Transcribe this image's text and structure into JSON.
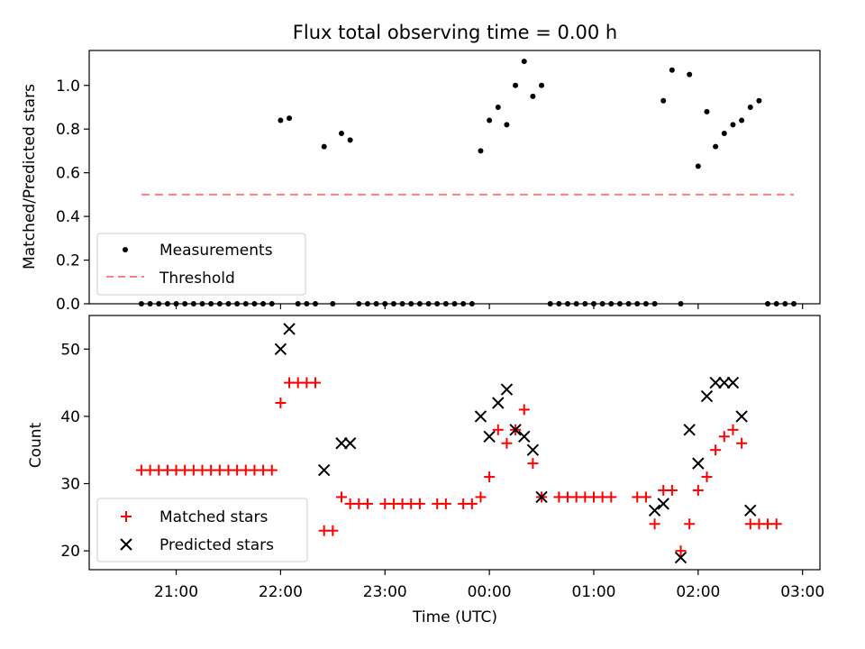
{
  "chart_data": [
    {
      "type": "scatter",
      "title": "Flux total observing time = 0.00 h",
      "xlabel": "",
      "ylabel": "Matched/Predicted stars",
      "ylim": [
        0,
        1.16
      ],
      "yticks": [
        "0.0",
        "0.2",
        "0.4",
        "0.6",
        "0.8",
        "1.0"
      ],
      "grid": false,
      "legend_position": "lower-left",
      "series": [
        {
          "name": "Measurements",
          "kind": "points",
          "color": "#000000",
          "points": [
            [
              "20:40",
              0
            ],
            [
              "20:45",
              0
            ],
            [
              "20:50",
              0
            ],
            [
              "20:55",
              0
            ],
            [
              "21:00",
              0
            ],
            [
              "21:05",
              0
            ],
            [
              "21:10",
              0
            ],
            [
              "21:15",
              0
            ],
            [
              "21:20",
              0
            ],
            [
              "21:25",
              0
            ],
            [
              "21:30",
              0
            ],
            [
              "21:35",
              0
            ],
            [
              "21:40",
              0
            ],
            [
              "21:45",
              0
            ],
            [
              "21:50",
              0
            ],
            [
              "21:55",
              0
            ],
            [
              "22:00",
              0.84
            ],
            [
              "22:05",
              0.85
            ],
            [
              "22:10",
              0
            ],
            [
              "22:15",
              0
            ],
            [
              "22:20",
              0
            ],
            [
              "22:25",
              0.72
            ],
            [
              "22:30",
              0
            ],
            [
              "22:35",
              0.78
            ],
            [
              "22:40",
              0.75
            ],
            [
              "22:45",
              0
            ],
            [
              "22:50",
              0
            ],
            [
              "22:55",
              0
            ],
            [
              "23:00",
              0
            ],
            [
              "23:05",
              0
            ],
            [
              "23:10",
              0
            ],
            [
              "23:15",
              0
            ],
            [
              "23:20",
              0
            ],
            [
              "23:25",
              0
            ],
            [
              "23:30",
              0
            ],
            [
              "23:35",
              0
            ],
            [
              "23:40",
              0
            ],
            [
              "23:45",
              0
            ],
            [
              "23:50",
              0
            ],
            [
              "23:55",
              0.7
            ],
            [
              "00:00",
              0.84
            ],
            [
              "00:05",
              0.9
            ],
            [
              "00:10",
              0.82
            ],
            [
              "00:15",
              1.0
            ],
            [
              "00:20",
              1.11
            ],
            [
              "00:25",
              0.95
            ],
            [
              "00:30",
              1.0
            ],
            [
              "00:35",
              0
            ],
            [
              "00:40",
              0
            ],
            [
              "00:45",
              0
            ],
            [
              "00:50",
              0
            ],
            [
              "00:55",
              0
            ],
            [
              "01:00",
              0
            ],
            [
              "01:05",
              0
            ],
            [
              "01:10",
              0
            ],
            [
              "01:15",
              0
            ],
            [
              "01:20",
              0
            ],
            [
              "01:25",
              0
            ],
            [
              "01:30",
              0
            ],
            [
              "01:35",
              0
            ],
            [
              "01:40",
              0.93
            ],
            [
              "01:45",
              1.07
            ],
            [
              "01:50",
              0
            ],
            [
              "01:55",
              1.05
            ],
            [
              "02:00",
              0.63
            ],
            [
              "02:05",
              0.88
            ],
            [
              "02:10",
              0.72
            ],
            [
              "02:15",
              0.78
            ],
            [
              "02:20",
              0.82
            ],
            [
              "02:25",
              0.84
            ],
            [
              "02:30",
              0.9
            ],
            [
              "02:35",
              0.93
            ],
            [
              "02:40",
              0
            ],
            [
              "02:45",
              0
            ],
            [
              "02:50",
              0
            ],
            [
              "02:55",
              0
            ]
          ]
        },
        {
          "name": "Threshold",
          "kind": "line",
          "color": "#ff7f7f",
          "dash": true,
          "y": 0.5,
          "x_range": [
            "20:40",
            "02:55"
          ]
        }
      ]
    },
    {
      "type": "scatter",
      "title": "",
      "xlabel": "Time (UTC)",
      "ylabel": "Count",
      "ylim": [
        17.2,
        55
      ],
      "yticks": [
        "20",
        "30",
        "40",
        "50"
      ],
      "x_ticks": [
        "21:00",
        "22:00",
        "23:00",
        "00:00",
        "01:00",
        "02:00",
        "03:00"
      ],
      "grid": false,
      "legend_position": "lower-left",
      "series": [
        {
          "name": "Matched stars",
          "marker": "plus",
          "color": "#ff0000",
          "points": [
            [
              "20:40",
              32
            ],
            [
              "20:45",
              32
            ],
            [
              "20:50",
              32
            ],
            [
              "20:55",
              32
            ],
            [
              "21:00",
              32
            ],
            [
              "21:05",
              32
            ],
            [
              "21:10",
              32
            ],
            [
              "21:15",
              32
            ],
            [
              "21:20",
              32
            ],
            [
              "21:25",
              32
            ],
            [
              "21:30",
              32
            ],
            [
              "21:35",
              32
            ],
            [
              "21:40",
              32
            ],
            [
              "21:45",
              32
            ],
            [
              "21:50",
              32
            ],
            [
              "21:55",
              32
            ],
            [
              "22:00",
              42
            ],
            [
              "22:05",
              45
            ],
            [
              "22:10",
              45
            ],
            [
              "22:15",
              45
            ],
            [
              "22:20",
              45
            ],
            [
              "22:25",
              23
            ],
            [
              "22:30",
              23
            ],
            [
              "22:35",
              28
            ],
            [
              "22:40",
              27
            ],
            [
              "22:45",
              27
            ],
            [
              "22:50",
              27
            ],
            [
              "23:00",
              27
            ],
            [
              "23:05",
              27
            ],
            [
              "23:10",
              27
            ],
            [
              "23:15",
              27
            ],
            [
              "23:20",
              27
            ],
            [
              "23:30",
              27
            ],
            [
              "23:35",
              27
            ],
            [
              "23:45",
              27
            ],
            [
              "23:50",
              27
            ],
            [
              "23:55",
              28
            ],
            [
              "00:00",
              31
            ],
            [
              "00:05",
              38
            ],
            [
              "00:10",
              36
            ],
            [
              "00:15",
              38
            ],
            [
              "00:20",
              41
            ],
            [
              "00:25",
              33
            ],
            [
              "00:30",
              28
            ],
            [
              "00:40",
              28
            ],
            [
              "00:45",
              28
            ],
            [
              "00:50",
              28
            ],
            [
              "00:55",
              28
            ],
            [
              "01:00",
              28
            ],
            [
              "01:05",
              28
            ],
            [
              "01:10",
              28
            ],
            [
              "01:25",
              28
            ],
            [
              "01:30",
              28
            ],
            [
              "01:35",
              24
            ],
            [
              "01:40",
              29
            ],
            [
              "01:45",
              29
            ],
            [
              "01:50",
              20
            ],
            [
              "01:55",
              24
            ],
            [
              "02:00",
              29
            ],
            [
              "02:05",
              31
            ],
            [
              "02:10",
              35
            ],
            [
              "02:15",
              37
            ],
            [
              "02:20",
              38
            ],
            [
              "02:25",
              36
            ],
            [
              "02:30",
              24
            ],
            [
              "02:35",
              24
            ],
            [
              "02:40",
              24
            ],
            [
              "02:45",
              24
            ]
          ]
        },
        {
          "name": "Predicted stars",
          "marker": "x",
          "color": "#000000",
          "points": [
            [
              "22:00",
              50
            ],
            [
              "22:05",
              53
            ],
            [
              "22:25",
              32
            ],
            [
              "22:35",
              36
            ],
            [
              "22:40",
              36
            ],
            [
              "23:55",
              40
            ],
            [
              "00:00",
              37
            ],
            [
              "00:05",
              42
            ],
            [
              "00:10",
              44
            ],
            [
              "00:15",
              38
            ],
            [
              "00:20",
              37
            ],
            [
              "00:25",
              35
            ],
            [
              "00:30",
              28
            ],
            [
              "01:35",
              26
            ],
            [
              "01:40",
              27
            ],
            [
              "01:50",
              19
            ],
            [
              "01:55",
              38
            ],
            [
              "02:00",
              33
            ],
            [
              "02:05",
              43
            ],
            [
              "02:10",
              45
            ],
            [
              "02:15",
              45
            ],
            [
              "02:20",
              45
            ],
            [
              "02:25",
              40
            ],
            [
              "02:30",
              26
            ]
          ]
        }
      ]
    }
  ]
}
